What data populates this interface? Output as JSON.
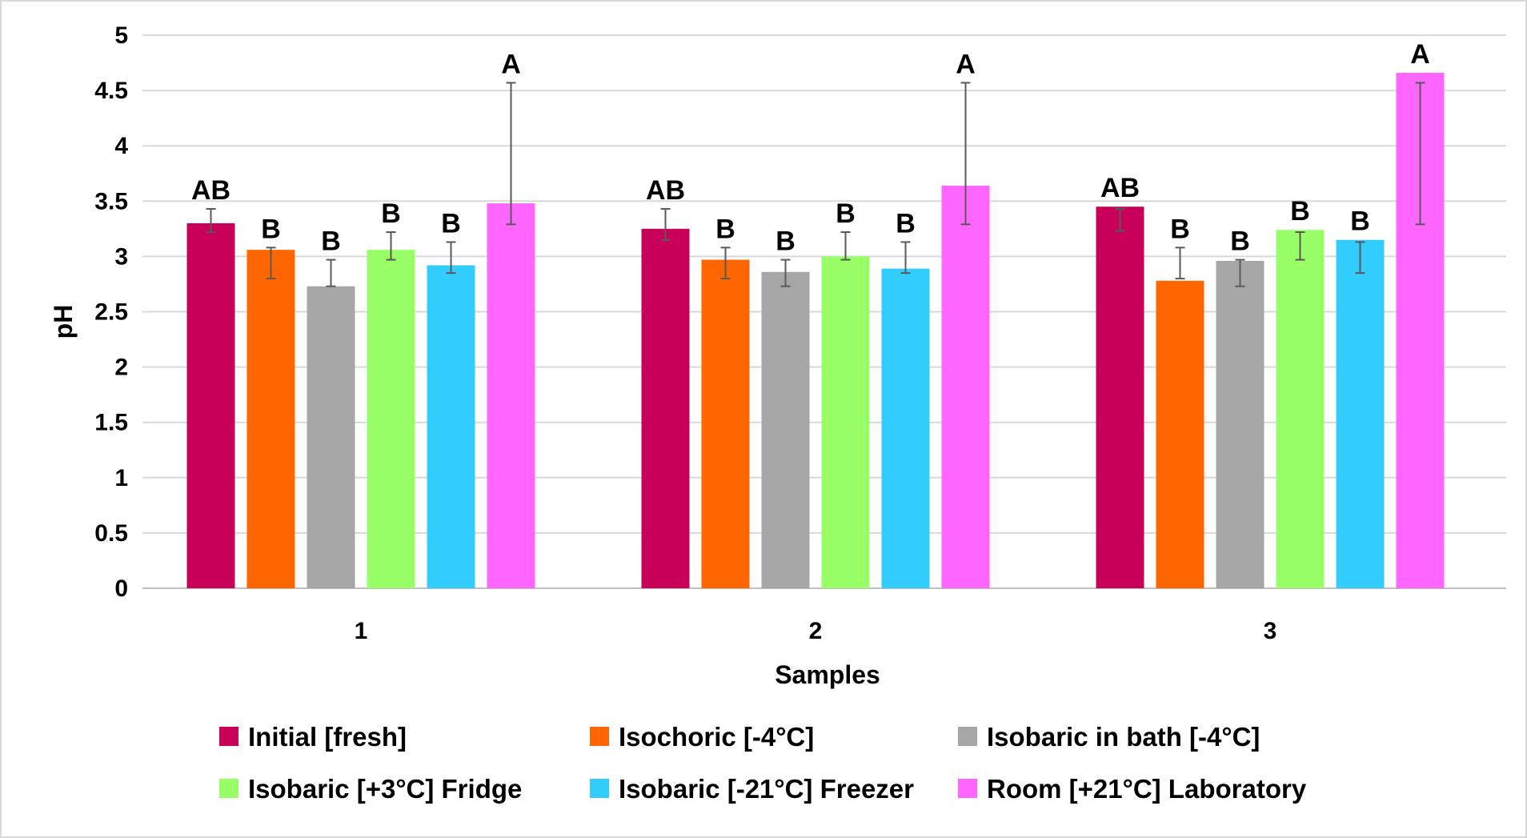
{
  "chart_data": {
    "type": "bar",
    "title": "",
    "xlabel": "Samples",
    "ylabel": "pH",
    "ylim": [
      0,
      5
    ],
    "yticks": [
      "0",
      "0.5",
      "1",
      "1.5",
      "2",
      "2.5",
      "3",
      "3.5",
      "4",
      "4.5",
      "5"
    ],
    "grid": true,
    "legend_position": "bottom",
    "categories": [
      "1",
      "2",
      "3"
    ],
    "series": [
      {
        "name": "Initial [fresh]",
        "color": "#c8005a",
        "values": [
          3.3,
          3.25,
          3.45
        ],
        "error_low": [
          3.22,
          3.15,
          3.23
        ],
        "error_high": [
          3.43,
          3.43,
          3.43
        ],
        "labels": [
          "AB",
          "AB",
          "AB"
        ]
      },
      {
        "name": "Isochoric [-4°C]",
        "color": "#ff6600",
        "values": [
          3.06,
          2.97,
          2.78
        ],
        "error_low": [
          2.8,
          2.8,
          2.8
        ],
        "error_high": [
          3.08,
          3.08,
          3.08
        ],
        "labels": [
          "B",
          "B",
          "B"
        ]
      },
      {
        "name": "Isobaric in bath [-4°C]",
        "color": "#a6a6a6",
        "values": [
          2.73,
          2.86,
          2.96
        ],
        "error_low": [
          2.73,
          2.73,
          2.73
        ],
        "error_high": [
          2.97,
          2.97,
          2.97
        ],
        "labels": [
          "B",
          "B",
          "B"
        ]
      },
      {
        "name": "Isobaric [+3°C]  Fridge",
        "color": "#99ff66",
        "values": [
          3.06,
          3.0,
          3.24
        ],
        "error_low": [
          2.97,
          2.97,
          2.97
        ],
        "error_high": [
          3.22,
          3.22,
          3.22
        ],
        "labels": [
          "B",
          "B",
          "B"
        ]
      },
      {
        "name": "Isobaric [-21°C]  Freezer",
        "color": "#33ccff",
        "values": [
          2.92,
          2.89,
          3.15
        ],
        "error_low": [
          2.85,
          2.85,
          2.85
        ],
        "error_high": [
          3.13,
          3.13,
          3.13
        ],
        "labels": [
          "B",
          "B",
          "B"
        ]
      },
      {
        "name": "Room [+21°C] Laboratory",
        "color": "#ff66ff",
        "values": [
          3.48,
          3.64,
          4.66
        ],
        "error_low": [
          3.29,
          3.29,
          3.29
        ],
        "error_high": [
          4.57,
          4.57,
          4.57
        ],
        "labels": [
          "A",
          "A",
          "A"
        ]
      }
    ],
    "colors": {
      "grid": "#d9d9d9",
      "axis": "#bfbfbf",
      "error_bar": "#595959",
      "text": "#000000"
    }
  }
}
